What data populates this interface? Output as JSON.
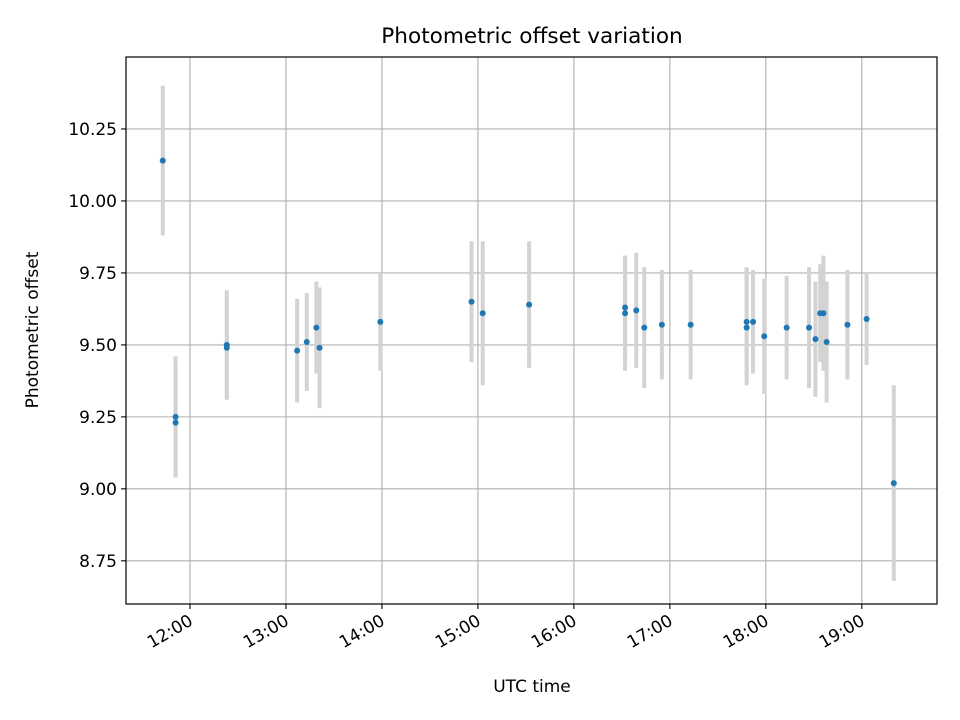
{
  "chart_data": {
    "type": "scatter",
    "title": "Photometric offset variation",
    "xlabel": "UTC time",
    "ylabel": "Photometric offset",
    "xlim": [
      "11:20",
      "19:47"
    ],
    "ylim": [
      8.6,
      10.5
    ],
    "x_ticks": [
      "12:00",
      "13:00",
      "14:00",
      "15:00",
      "16:00",
      "17:00",
      "18:00",
      "19:00"
    ],
    "y_ticks": [
      "8.75",
      "9.00",
      "9.25",
      "9.50",
      "9.75",
      "10.00",
      "10.25"
    ],
    "grid": true,
    "point_color": "#1f77b4",
    "errorbar_color": "#d3d3d3",
    "points": [
      {
        "x": "11:43",
        "y": 10.14,
        "err": 0.26
      },
      {
        "x": "11:51",
        "y": 9.25,
        "err": 0.21
      },
      {
        "x": "11:51",
        "y": 9.23,
        "err": 0.19
      },
      {
        "x": "12:23",
        "y": 9.5,
        "err": 0.19
      },
      {
        "x": "12:23",
        "y": 9.49,
        "err": 0.18
      },
      {
        "x": "13:07",
        "y": 9.48,
        "err": 0.18
      },
      {
        "x": "13:13",
        "y": 9.51,
        "err": 0.17
      },
      {
        "x": "13:19",
        "y": 9.56,
        "err": 0.16
      },
      {
        "x": "13:21",
        "y": 9.49,
        "err": 0.21
      },
      {
        "x": "13:59",
        "y": 9.58,
        "err": 0.17
      },
      {
        "x": "14:56",
        "y": 9.65,
        "err": 0.21
      },
      {
        "x": "15:03",
        "y": 9.61,
        "err": 0.25
      },
      {
        "x": "15:32",
        "y": 9.64,
        "err": 0.22
      },
      {
        "x": "16:32",
        "y": 9.61,
        "err": 0.2
      },
      {
        "x": "16:32",
        "y": 9.63,
        "err": 0.18
      },
      {
        "x": "16:39",
        "y": 9.62,
        "err": 0.2
      },
      {
        "x": "16:44",
        "y": 9.56,
        "err": 0.21
      },
      {
        "x": "16:55",
        "y": 9.57,
        "err": 0.19
      },
      {
        "x": "17:13",
        "y": 9.57,
        "err": 0.19
      },
      {
        "x": "17:48",
        "y": 9.56,
        "err": 0.2
      },
      {
        "x": "17:48",
        "y": 9.58,
        "err": 0.19
      },
      {
        "x": "17:52",
        "y": 9.58,
        "err": 0.18
      },
      {
        "x": "17:59",
        "y": 9.53,
        "err": 0.2
      },
      {
        "x": "18:13",
        "y": 9.56,
        "err": 0.18
      },
      {
        "x": "18:27",
        "y": 9.56,
        "err": 0.21
      },
      {
        "x": "18:31",
        "y": 9.52,
        "err": 0.2
      },
      {
        "x": "18:34",
        "y": 9.61,
        "err": 0.17
      },
      {
        "x": "18:36",
        "y": 9.61,
        "err": 0.2
      },
      {
        "x": "18:38",
        "y": 9.51,
        "err": 0.21
      },
      {
        "x": "18:51",
        "y": 9.57,
        "err": 0.19
      },
      {
        "x": "19:03",
        "y": 9.59,
        "err": 0.16
      },
      {
        "x": "19:20",
        "y": 9.02,
        "err": 0.34
      }
    ]
  }
}
